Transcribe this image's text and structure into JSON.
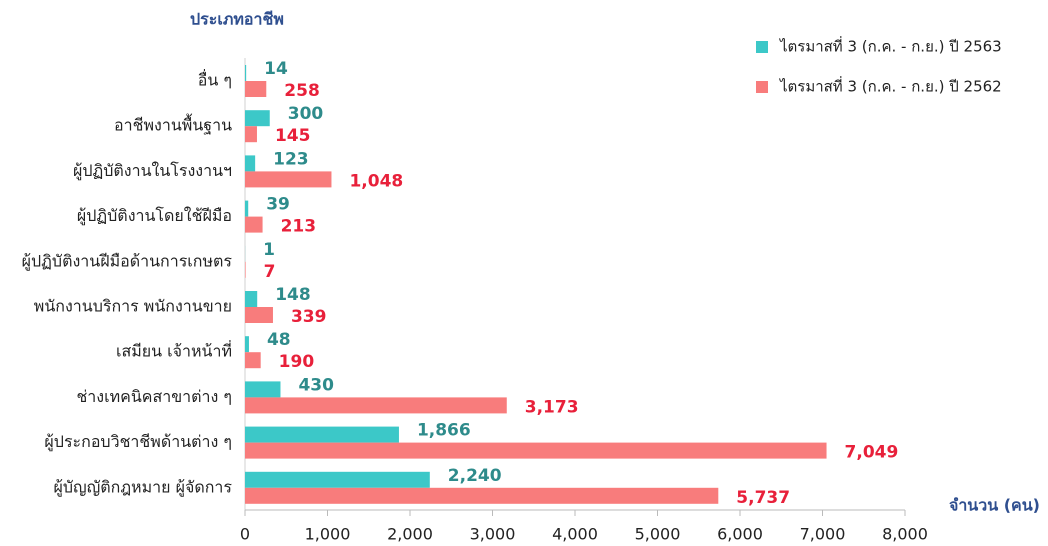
{
  "chart_data": {
    "type": "bar",
    "orientation": "horizontal",
    "y_axis_title": "ประเภทอาชีพ",
    "x_axis_title": "จำนวน (คน)",
    "categories": [
      "อื่น ๆ",
      "อาชีพงานพื้นฐาน",
      "ผู้ปฏิบัติงานในโรงงานฯ",
      "ผู้ปฏิบัติงานโดยใช้ฝีมือ",
      "ผู้ปฏิบัติงานฝีมือด้านการเกษตร",
      "พนักงานบริการ พนักงานขาย",
      "เสมียน เจ้าหน้าที่",
      "ช่างเทคนิคสาขาต่าง ๆ",
      "ผู้ประกอบวิชาชีพด้านต่าง ๆ",
      "ผู้บัญญัติกฎหมาย ผู้จัดการ"
    ],
    "series": [
      {
        "name": "ไตรมาสที่ 3 (ก.ค. - ก.ย.) ปี 2563",
        "color": "#3cc8c8",
        "label_color": "#2e8b8b",
        "values": [
          14,
          300,
          123,
          39,
          1,
          148,
          48,
          430,
          1866,
          2240
        ],
        "value_labels": [
          "14",
          "300",
          "123",
          "39",
          "1",
          "148",
          "48",
          "430",
          "1,866",
          "2,240"
        ]
      },
      {
        "name": "ไตรมาสที่ 3 (ก.ค. - ก.ย.) ปี 2562",
        "color": "#f87c7c",
        "label_color": "#e8203a",
        "values": [
          258,
          145,
          1048,
          213,
          7,
          339,
          190,
          3173,
          7049,
          5737
        ],
        "value_labels": [
          "258",
          "145",
          "1,048",
          "213",
          "7",
          "339",
          "190",
          "3,173",
          "7,049",
          "5,737"
        ]
      }
    ],
    "xlim": [
      0,
      8000
    ],
    "xticks": [
      0,
      {
        "value": 1000,
        "label": "1,000"
      },
      {
        "value": 2000,
        "label": "2,000"
      },
      {
        "value": 3000,
        "label": "3,000"
      },
      {
        "value": 4000,
        "label": "4,000"
      },
      {
        "value": 5000,
        "label": "5,000"
      },
      {
        "value": 6000,
        "label": "6,000"
      },
      {
        "value": 7000,
        "label": "7,000"
      },
      {
        "value": 8000,
        "label": "8,000"
      }
    ],
    "legend": "top-right"
  }
}
